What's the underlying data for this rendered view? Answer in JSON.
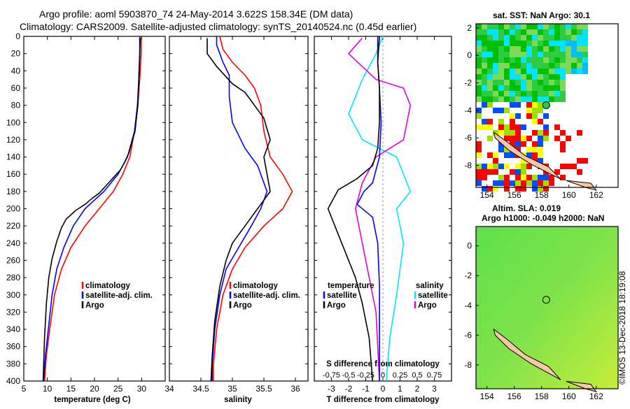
{
  "title_line1": "Argo profile: aoml 5903870_74 24-May-2014 3.622S 158.34E (DM data)",
  "title_line2": "Climatology: CARS2009. Satellite-adjusted climatology: synTS_20140524.nc (0.45d earlier)",
  "colors": {
    "climatology": "#ff0000",
    "satellite": "#0000ff",
    "argo": "#000000",
    "sal_sat": "#00e5ff",
    "sal_argo": "#e000e0"
  },
  "depth_ticks": [
    0,
    20,
    40,
    60,
    80,
    100,
    120,
    140,
    160,
    180,
    200,
    220,
    240,
    260,
    280,
    300,
    320,
    340,
    360,
    380,
    400
  ],
  "temperature_panel": {
    "xlabel": "temperature (deg C)",
    "xticks": [
      5,
      10,
      15,
      20,
      25,
      30
    ],
    "xlim": [
      5,
      35
    ],
    "legend": [
      "climatology",
      "satellite-adj. clim.",
      "Argo"
    ],
    "climatology": [
      [
        29.9,
        0
      ],
      [
        29.9,
        20
      ],
      [
        29.6,
        50
      ],
      [
        29.2,
        80
      ],
      [
        28.5,
        110
      ],
      [
        27.5,
        140
      ],
      [
        26,
        160
      ],
      [
        24,
        180
      ],
      [
        21,
        200
      ],
      [
        18,
        220
      ],
      [
        15,
        245
      ],
      [
        13,
        270
      ],
      [
        11.5,
        300
      ],
      [
        10.5,
        340
      ],
      [
        9.8,
        370
      ],
      [
        9.4,
        400
      ]
    ],
    "satellite": [
      [
        29.6,
        0
      ],
      [
        29.6,
        20
      ],
      [
        29.4,
        50
      ],
      [
        29.1,
        80
      ],
      [
        28.5,
        110
      ],
      [
        27,
        140
      ],
      [
        25,
        160
      ],
      [
        22,
        180
      ],
      [
        18,
        200
      ],
      [
        15.5,
        220
      ],
      [
        13.5,
        245
      ],
      [
        12,
        270
      ],
      [
        11,
        300
      ],
      [
        10.2,
        340
      ],
      [
        9.6,
        370
      ],
      [
        9.2,
        400
      ]
    ],
    "argo": [
      [
        29.7,
        2
      ],
      [
        29.6,
        20
      ],
      [
        29.4,
        50
      ],
      [
        29.2,
        80
      ],
      [
        28.6,
        110
      ],
      [
        27.3,
        135
      ],
      [
        26.5,
        145
      ],
      [
        25.5,
        155
      ],
      [
        23,
        170
      ],
      [
        21,
        182
      ],
      [
        19.5,
        188
      ],
      [
        18,
        195
      ],
      [
        16,
        202
      ],
      [
        14,
        212
      ],
      [
        13,
        222
      ],
      [
        12,
        238
      ],
      [
        11,
        258
      ],
      [
        10.3,
        280
      ],
      [
        9.8,
        310
      ],
      [
        9.4,
        350
      ],
      [
        9.1,
        400
      ]
    ]
  },
  "salinity_panel": {
    "xlabel": "salinity",
    "xticks": [
      34,
      34.5,
      35,
      35.5,
      36
    ],
    "xlim": [
      34,
      36.2
    ],
    "legend": [
      "climatology",
      "satellite-adj. clim.",
      "Argo"
    ],
    "climatology": [
      [
        34.8,
        0
      ],
      [
        34.85,
        15
      ],
      [
        35,
        30
      ],
      [
        35.2,
        45
      ],
      [
        35.35,
        60
      ],
      [
        35.45,
        80
      ],
      [
        35.5,
        110
      ],
      [
        35.6,
        140
      ],
      [
        35.8,
        160
      ],
      [
        35.95,
        180
      ],
      [
        35.8,
        200
      ],
      [
        35.5,
        220
      ],
      [
        35.2,
        245
      ],
      [
        35,
        270
      ],
      [
        34.85,
        300
      ],
      [
        34.75,
        340
      ],
      [
        34.7,
        380
      ],
      [
        34.7,
        400
      ]
    ],
    "satellite": [
      [
        34.75,
        0
      ],
      [
        34.75,
        10
      ],
      [
        34.85,
        30
      ],
      [
        34.95,
        45
      ],
      [
        34.95,
        70
      ],
      [
        35,
        100
      ],
      [
        35.2,
        130
      ],
      [
        35.4,
        150
      ],
      [
        35.55,
        180
      ],
      [
        35.45,
        200
      ],
      [
        35.3,
        220
      ],
      [
        35.1,
        245
      ],
      [
        34.9,
        270
      ],
      [
        34.8,
        300
      ],
      [
        34.72,
        340
      ],
      [
        34.68,
        380
      ],
      [
        34.68,
        400
      ]
    ],
    "argo": [
      [
        34.6,
        2
      ],
      [
        34.6,
        20
      ],
      [
        34.75,
        35
      ],
      [
        35,
        55
      ],
      [
        35.2,
        65
      ],
      [
        35.3,
        75
      ],
      [
        35.4,
        85
      ],
      [
        35.5,
        95
      ],
      [
        35.6,
        120
      ],
      [
        35.5,
        140
      ],
      [
        35.55,
        160
      ],
      [
        35.6,
        180
      ],
      [
        35.4,
        200
      ],
      [
        35.2,
        220
      ],
      [
        35,
        240
      ],
      [
        34.9,
        260
      ],
      [
        34.8,
        290
      ],
      [
        34.72,
        330
      ],
      [
        34.68,
        370
      ],
      [
        34.66,
        400
      ]
    ]
  },
  "difference_panel": {
    "xlabel": "T difference from climatology",
    "xticks_bottom": [
      -3,
      -2,
      -1,
      0,
      1,
      2,
      3
    ],
    "s_axis_label": "S difference from climatology",
    "s_ticks": [
      "-0.75",
      "-0.5",
      "-0.25",
      "0",
      "0.25",
      "0.5",
      "0.75"
    ],
    "legend_left_title": "temperature",
    "legend_right_title": "salinity",
    "legend_items": [
      "satellite",
      "Argo"
    ],
    "t_satellite": [
      [
        -0.3,
        0
      ],
      [
        -0.3,
        30
      ],
      [
        -0.2,
        60
      ],
      [
        -0.1,
        100
      ],
      [
        -0.2,
        140
      ],
      [
        -0.6,
        170
      ],
      [
        -1.1,
        180
      ],
      [
        -1.5,
        195
      ],
      [
        -0.6,
        210
      ],
      [
        -0.3,
        240
      ],
      [
        -0.2,
        290
      ],
      [
        -0.2,
        350
      ],
      [
        -0.2,
        400
      ]
    ],
    "t_argo": [
      [
        -0.2,
        0
      ],
      [
        -0.3,
        30
      ],
      [
        -0.2,
        60
      ],
      [
        -0.2,
        100
      ],
      [
        -0.3,
        130
      ],
      [
        -0.6,
        150
      ],
      [
        -1.5,
        165
      ],
      [
        -2.6,
        178
      ],
      [
        -3.2,
        200
      ],
      [
        -2.8,
        220
      ],
      [
        -2.2,
        250
      ],
      [
        -1.6,
        280
      ],
      [
        -1.2,
        310
      ],
      [
        -0.8,
        350
      ],
      [
        -0.6,
        400
      ]
    ],
    "s_satellite": [
      [
        0.0,
        0
      ],
      [
        -0.1,
        20
      ],
      [
        -0.3,
        50
      ],
      [
        -0.5,
        90
      ],
      [
        -0.3,
        120
      ],
      [
        0.2,
        140
      ],
      [
        0.4,
        180
      ],
      [
        0.2,
        200
      ],
      [
        0.3,
        240
      ],
      [
        0.2,
        300
      ],
      [
        0.1,
        350
      ],
      [
        0.05,
        400
      ]
    ],
    "s_argo": [
      [
        -0.3,
        2
      ],
      [
        -0.5,
        20
      ],
      [
        -0.1,
        50
      ],
      [
        0.3,
        60
      ],
      [
        0.4,
        80
      ],
      [
        0.3,
        120
      ],
      [
        -0.1,
        140
      ],
      [
        -0.3,
        170
      ],
      [
        -0.4,
        200
      ],
      [
        -0.3,
        240
      ],
      [
        -0.2,
        280
      ],
      [
        -0.1,
        320
      ],
      [
        -0.05,
        400
      ]
    ]
  },
  "sst_map": {
    "title": "sat. SST: NaN Argo: 30.1",
    "xticks": [
      154,
      156,
      158,
      160,
      162
    ],
    "yticks": [
      2,
      0,
      -2,
      -4,
      -6,
      -8
    ]
  },
  "sla_map": {
    "title1": "Altim. SLA: 0.019",
    "title2": "Argo h1000: -0.049 h2000: NaN",
    "xticks": [
      154,
      156,
      158,
      160,
      162
    ],
    "yticks": [
      0,
      -2,
      -4,
      -6,
      -8
    ]
  },
  "credit": "©IMOS 13-Dec-2018 18:19:08"
}
